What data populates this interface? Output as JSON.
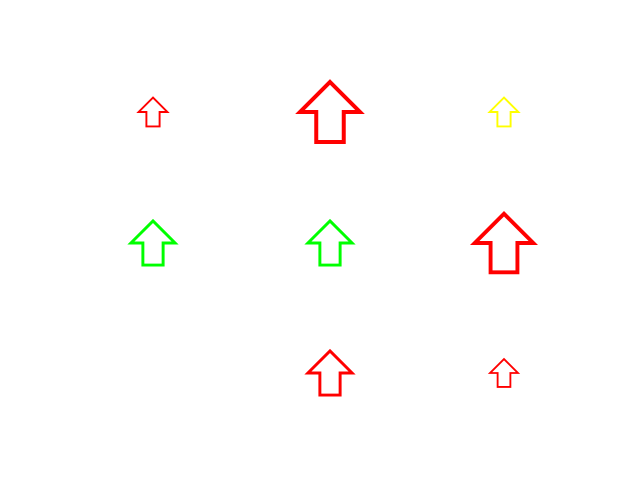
{
  "arrows": [
    {
      "row": 1,
      "col": 1,
      "direction": "up",
      "color": "#ff0000",
      "icon": "up-arrow-outline-icon",
      "size": "small"
    },
    {
      "row": 1,
      "col": 2,
      "direction": "up",
      "color": "#ff0000",
      "icon": "up-arrow-outline-icon",
      "size": "large"
    },
    {
      "row": 1,
      "col": 3,
      "direction": "up",
      "color": "#ffff00",
      "icon": "up-arrow-outline-icon",
      "size": "small"
    },
    {
      "row": 2,
      "col": 1,
      "direction": "up",
      "color": "#00ff00",
      "icon": "up-arrow-outline-icon",
      "size": "medium"
    },
    {
      "row": 2,
      "col": 2,
      "direction": "up",
      "color": "#00ff00",
      "icon": "up-arrow-outline-icon",
      "size": "medium"
    },
    {
      "row": 2,
      "col": 3,
      "direction": "up",
      "color": "#ff0000",
      "icon": "up-arrow-outline-icon",
      "size": "large"
    },
    {
      "row": 3,
      "col": 2,
      "direction": "up",
      "color": "#ff0000",
      "icon": "up-arrow-outline-icon",
      "size": "medium"
    },
    {
      "row": 3,
      "col": 3,
      "direction": "up",
      "color": "#ff0000",
      "icon": "up-arrow-outline-icon",
      "size": "small"
    }
  ]
}
